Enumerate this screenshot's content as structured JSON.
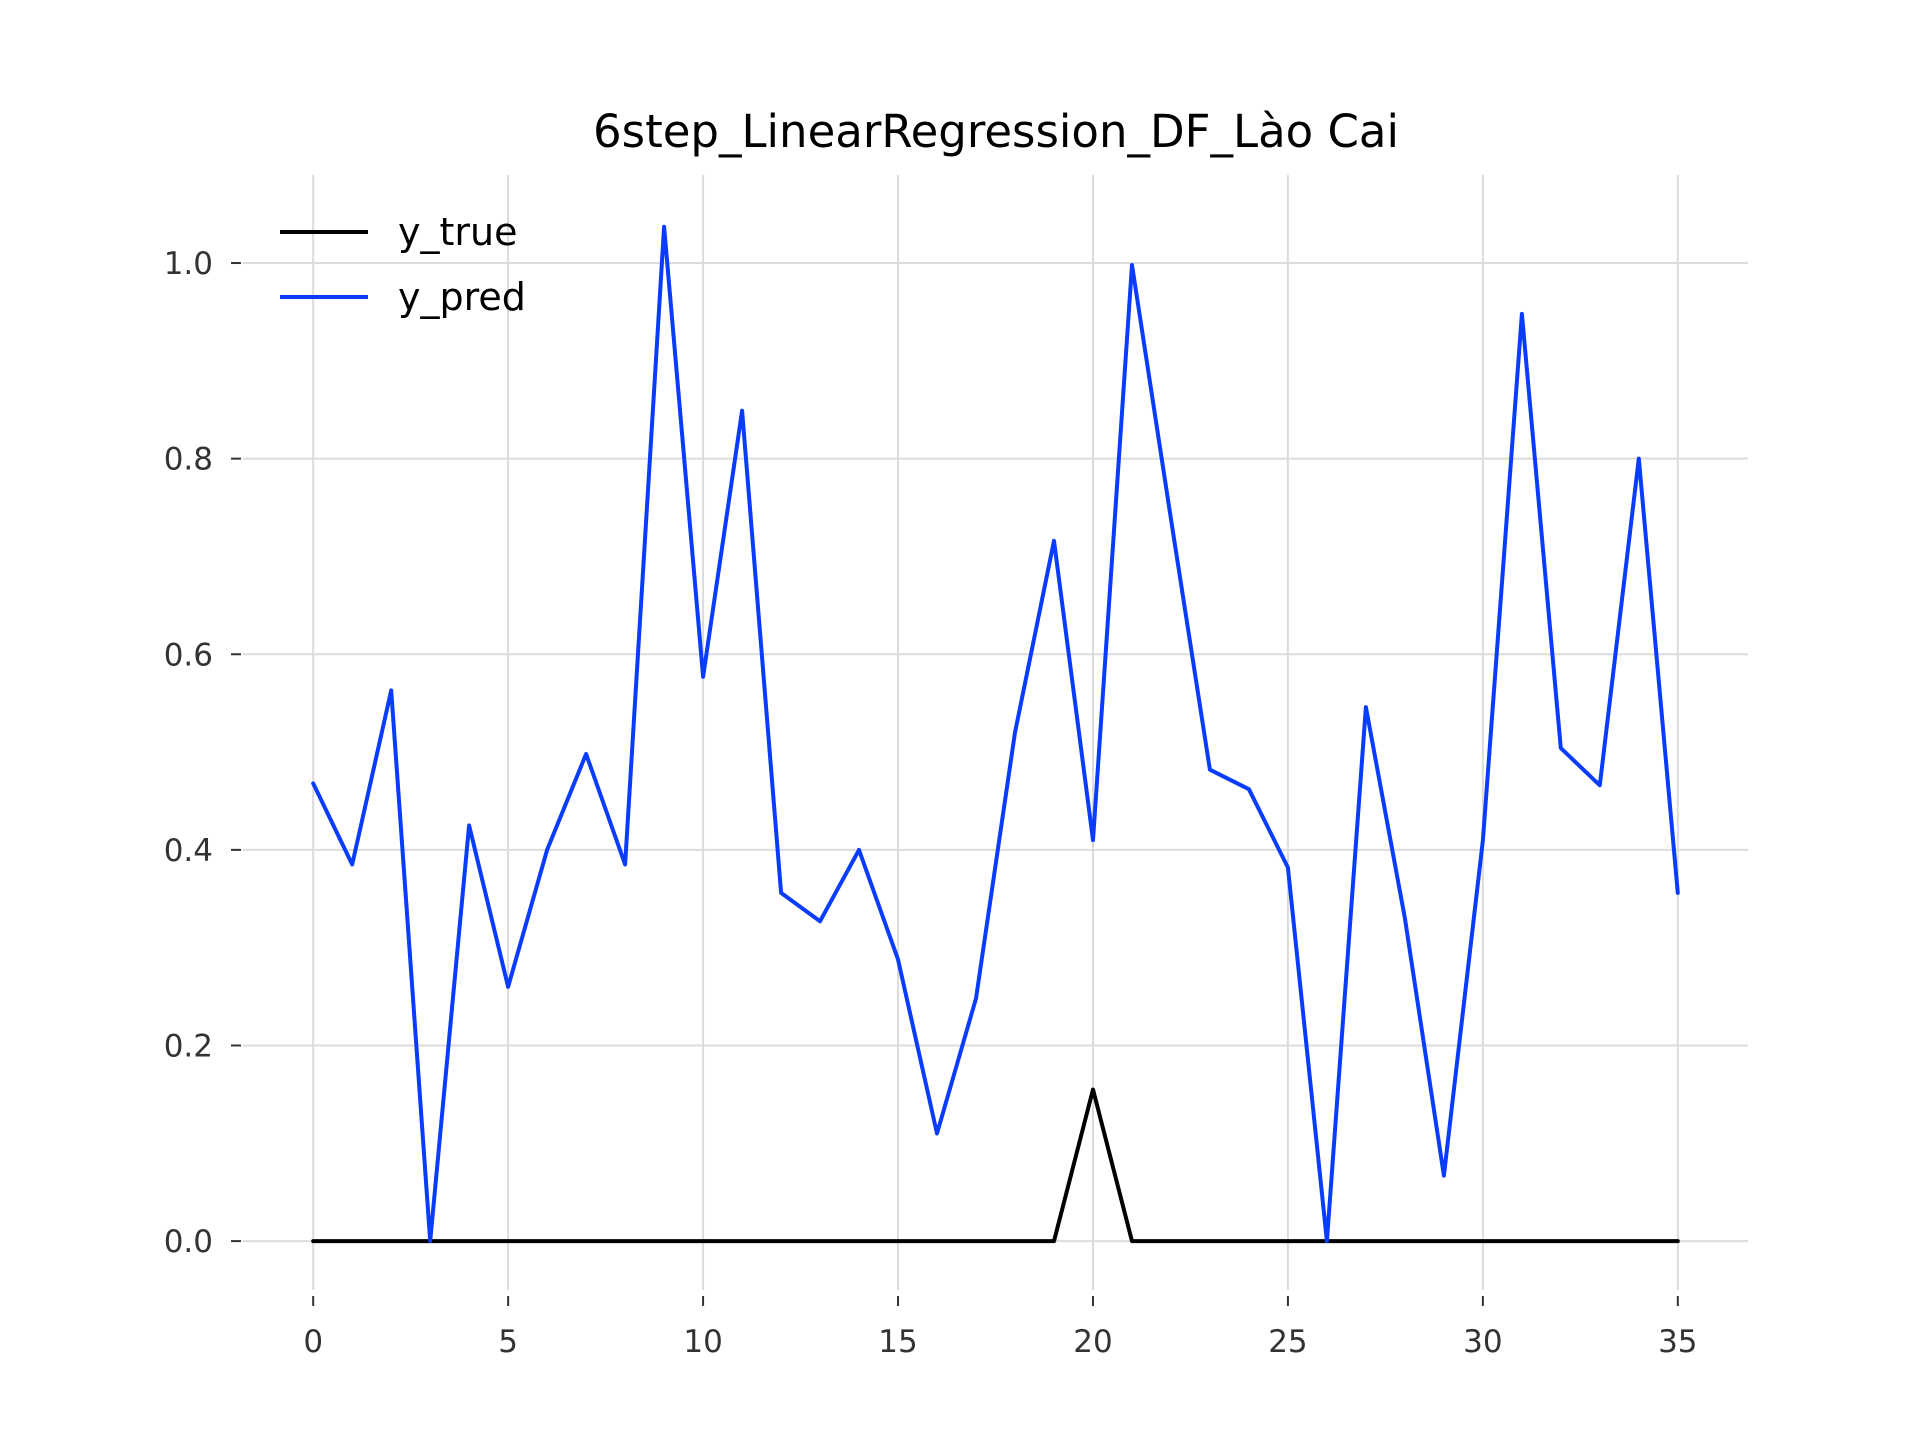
{
  "chart_data": {
    "type": "line",
    "title": "6step_LinearRegression_DF_Lào Cai",
    "xlabel": "",
    "ylabel": "",
    "xlim": [
      -1.8,
      36.8
    ],
    "ylim": [
      -0.05,
      1.09
    ],
    "x_ticks": [
      0,
      5,
      10,
      15,
      20,
      25,
      30,
      35
    ],
    "y_ticks": [
      0.0,
      0.2,
      0.4,
      0.6,
      0.8,
      1.0
    ],
    "x_tick_labels": [
      "0",
      "5",
      "10",
      "15",
      "20",
      "25",
      "30",
      "35"
    ],
    "y_tick_labels": [
      "0.0",
      "0.2",
      "0.4",
      "0.6",
      "0.8",
      "1.0"
    ],
    "grid": true,
    "legend_position": "top-left",
    "x": [
      0,
      1,
      2,
      3,
      4,
      5,
      6,
      7,
      8,
      9,
      10,
      11,
      12,
      13,
      14,
      15,
      16,
      17,
      18,
      19,
      20,
      21,
      22,
      23,
      24,
      25,
      26,
      27,
      28,
      29,
      30,
      31,
      32,
      33,
      34,
      35
    ],
    "series": [
      {
        "name": "y_true",
        "color": "#000000",
        "values": [
          0,
          0,
          0,
          0,
          0,
          0,
          0,
          0,
          0,
          0,
          0,
          0,
          0,
          0,
          0,
          0,
          0,
          0,
          0,
          0,
          0.155,
          0,
          0,
          0,
          0,
          0,
          0,
          0,
          0,
          0,
          0,
          0,
          0,
          0,
          0,
          0
        ]
      },
      {
        "name": "y_pred",
        "color": "#0a3cff",
        "values": [
          0.468,
          0.385,
          0.563,
          0.0,
          0.425,
          0.26,
          0.4,
          0.498,
          0.385,
          1.037,
          0.577,
          0.849,
          0.356,
          0.327,
          0.4,
          0.288,
          0.11,
          0.248,
          0.52,
          0.716,
          0.41,
          0.998,
          0.738,
          0.482,
          0.462,
          0.382,
          0.0,
          0.546,
          0.33,
          0.067,
          0.41,
          0.948,
          0.504,
          0.466,
          0.8,
          0.356
        ]
      }
    ]
  }
}
